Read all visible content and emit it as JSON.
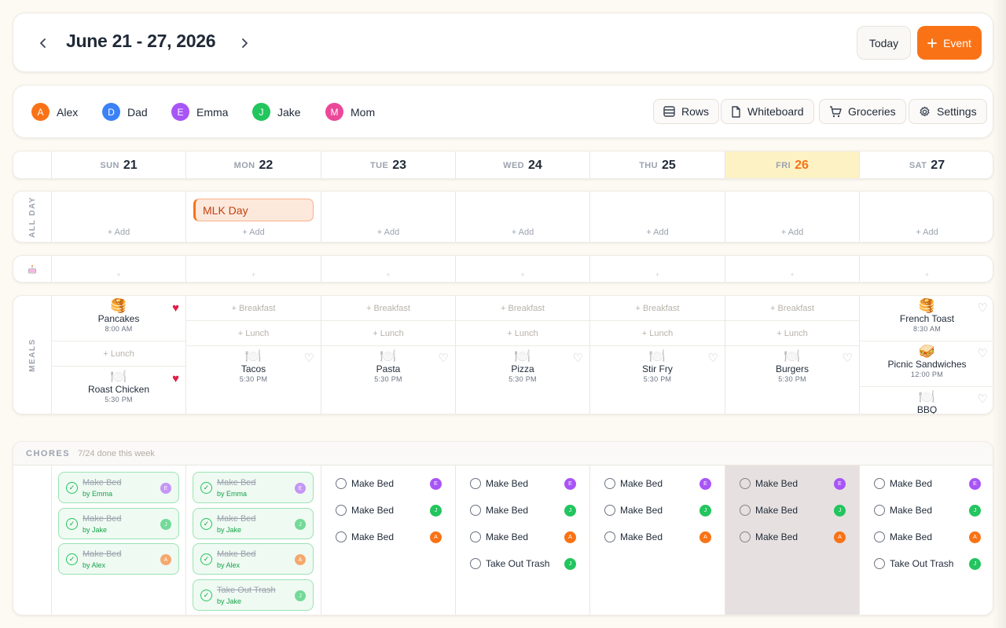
{
  "header": {
    "title": "June 21 - 27, 2026",
    "today_label": "Today",
    "event_label": "Event"
  },
  "members": [
    {
      "initial": "A",
      "name": "Alex",
      "color": "#f97316"
    },
    {
      "initial": "D",
      "name": "Dad",
      "color": "#3b82f6"
    },
    {
      "initial": "E",
      "name": "Emma",
      "color": "#a855f7"
    },
    {
      "initial": "J",
      "name": "Jake",
      "color": "#22c55e"
    },
    {
      "initial": "M",
      "name": "Mom",
      "color": "#ec4899"
    }
  ],
  "toolbar": {
    "rows": "Rows",
    "whiteboard": "Whiteboard",
    "groceries": "Groceries",
    "settings": "Settings"
  },
  "days": [
    {
      "dow": "SUN",
      "num": "21"
    },
    {
      "dow": "MON",
      "num": "22"
    },
    {
      "dow": "TUE",
      "num": "23"
    },
    {
      "dow": "WED",
      "num": "24"
    },
    {
      "dow": "THU",
      "num": "25"
    },
    {
      "dow": "FRI",
      "num": "26",
      "today": true
    },
    {
      "dow": "SAT",
      "num": "27"
    }
  ],
  "allday": {
    "label": "ALL DAY",
    "add_label": "+ Add",
    "event": "MLK Day"
  },
  "meals": {
    "label": "MEALS",
    "add_breakfast": "+ Breakfast",
    "add_lunch": "+ Lunch",
    "sun": {
      "breakfast": {
        "name": "Pancakes",
        "time": "8:00 AM",
        "icon": "🥞"
      },
      "dinner": {
        "name": "Roast Chicken",
        "time": "5:30 PM",
        "icon": "🍽️"
      }
    },
    "mon": {
      "name": "Tacos",
      "time": "5:30 PM"
    },
    "tue": {
      "name": "Pasta",
      "time": "5:30 PM"
    },
    "wed": {
      "name": "Pizza",
      "time": "5:30 PM"
    },
    "thu": {
      "name": "Stir Fry",
      "time": "5:30 PM"
    },
    "fri": {
      "name": "Burgers",
      "time": "5:30 PM"
    },
    "sat": {
      "breakfast": {
        "name": "French Toast",
        "time": "8:30 AM",
        "icon": "🥞"
      },
      "lunch": {
        "name": "Picnic Sandwiches",
        "time": "12:00 PM",
        "icon": "🥪"
      },
      "dinner": {
        "name": "BBQ",
        "time": ""
      }
    }
  },
  "chores": {
    "title": "CHORES",
    "summary": "7/24 done this week",
    "make_bed": "Make Bed",
    "take_out_trash": "Take Out Trash",
    "by_emma": "by Emma",
    "by_jake": "by Jake",
    "by_alex": "by Alex"
  },
  "icons": {
    "prev": "chevron-left-icon",
    "next": "chevron-right-icon",
    "plus": "plus-icon",
    "rows": "rows-icon",
    "whiteboard": "document-icon",
    "groceries": "cart-icon",
    "settings": "gear-icon",
    "heart": "heart-icon",
    "check": "check-circle-icon",
    "birthday": "cake-icon"
  },
  "colors": {
    "accent": "#f97316",
    "today_bg": "#fdf2c4",
    "done_green": "#22c55e",
    "heart_red": "#e11d48"
  }
}
